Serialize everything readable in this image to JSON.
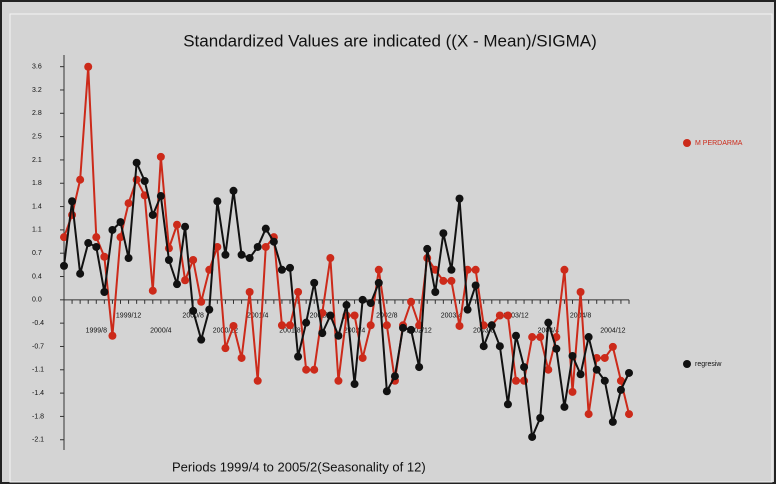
{
  "chart_data": {
    "type": "line",
    "title": "Standardized Values are indicated  ((X - Mean)/SIGMA)",
    "x_label": "Periods 1999/4 to 2005/2(Seasonality of 12)",
    "categories": [
      null,
      null,
      null,
      null,
      "1999/8",
      null,
      null,
      null,
      "1999/12",
      null,
      null,
      null,
      "2000/4",
      null,
      null,
      null,
      "2000/8",
      null,
      null,
      null,
      "2000/12",
      null,
      null,
      null,
      "2001/4",
      null,
      null,
      null,
      "2001/8",
      null,
      null,
      null,
      "2001/12",
      null,
      null,
      null,
      "2002/4",
      null,
      null,
      null,
      "2002/8",
      null,
      null,
      null,
      "2002/12",
      null,
      null,
      null,
      "2003/4",
      null,
      null,
      null,
      "2003/8",
      null,
      null,
      null,
      "2003/12",
      null,
      null,
      null,
      "2004/4",
      null,
      null,
      null,
      "2004/8",
      null,
      null,
      null,
      "2004/12",
      null,
      null
    ],
    "series": [
      {
        "name": "M PERDARMA",
        "color": "#cc2a1a",
        "values": [
          0.96,
          1.3,
          1.84,
          3.57,
          0.96,
          0.66,
          -0.55,
          0.96,
          1.48,
          1.84,
          1.6,
          0.14,
          2.19,
          0.79,
          1.15,
          0.3,
          0.61,
          -0.03,
          0.46,
          0.81,
          -0.74,
          -0.4,
          -0.89,
          0.12,
          -1.24,
          0.81,
          0.96,
          -0.39,
          -0.39,
          0.12,
          -1.07,
          -1.07,
          -0.2,
          0.64,
          -1.24,
          -0.24,
          -0.24,
          -0.89,
          -0.39,
          0.46,
          -0.39,
          -1.24,
          -0.39,
          -0.03,
          -0.39,
          0.64,
          0.46,
          0.29,
          0.29,
          -0.4,
          0.46,
          0.46,
          -0.39,
          -0.39,
          -0.24,
          -0.24,
          -1.24,
          -1.24,
          -0.57,
          -0.57,
          -1.07,
          -0.57,
          0.46,
          -1.41,
          0.12,
          -1.75,
          -0.89,
          -0.89,
          -0.72,
          -1.24,
          -1.75
        ]
      },
      {
        "name": "regresiw",
        "color": "#111111",
        "values": [
          0.52,
          1.51,
          0.4,
          0.87,
          0.81,
          0.12,
          1.07,
          1.19,
          0.64,
          2.1,
          1.82,
          1.3,
          1.59,
          0.61,
          0.24,
          1.12,
          -0.17,
          -0.61,
          -0.15,
          1.51,
          0.69,
          1.67,
          0.69,
          0.64,
          0.81,
          1.09,
          0.89,
          0.46,
          0.49,
          -0.87,
          -0.35,
          0.26,
          -0.51,
          -0.24,
          -0.55,
          -0.08,
          -1.29,
          0,
          -0.05,
          0.26,
          -1.4,
          -1.17,
          -0.43,
          -0.46,
          -1.03,
          0.78,
          0.12,
          1.02,
          0.46,
          1.55,
          -0.15,
          0.22,
          -0.71,
          -0.39,
          -0.71,
          -1.6,
          -0.55,
          -1.03,
          -2.1,
          -1.81,
          -0.35,
          -0.75,
          -1.64,
          -0.86,
          -1.14,
          -0.57,
          -1.07,
          -1.24,
          -1.87,
          -1.38,
          -1.12
        ]
      }
    ],
    "ylim": [
      -2.3,
      3.75
    ],
    "yticks": [
      {
        "value": 3.5714,
        "label": "3.6"
      },
      {
        "value": 3.2143,
        "label": "3.2"
      },
      {
        "value": 2.8571,
        "label": "2.8"
      },
      {
        "value": 2.5,
        "label": "2.5"
      },
      {
        "value": 2.1429,
        "label": "2.1"
      },
      {
        "value": 1.7857,
        "label": "1.8"
      },
      {
        "value": 1.4286,
        "label": "1.4"
      },
      {
        "value": 1.0714,
        "label": "1.1"
      },
      {
        "value": 0.7143,
        "label": "0.7"
      },
      {
        "value": 0.3571,
        "label": "0.4"
      },
      {
        "value": 0,
        "label": "0.0"
      },
      {
        "value": -0.3571,
        "label": "-0.4"
      },
      {
        "value": -0.7143,
        "label": "-0.7"
      },
      {
        "value": -1.0714,
        "label": "-1.1"
      },
      {
        "value": -1.4286,
        "label": "-1.4"
      },
      {
        "value": -1.7857,
        "label": "-1.8"
      },
      {
        "value": -2.1429,
        "label": "-2.1"
      }
    ],
    "legend_position": "right",
    "grid": false
  }
}
